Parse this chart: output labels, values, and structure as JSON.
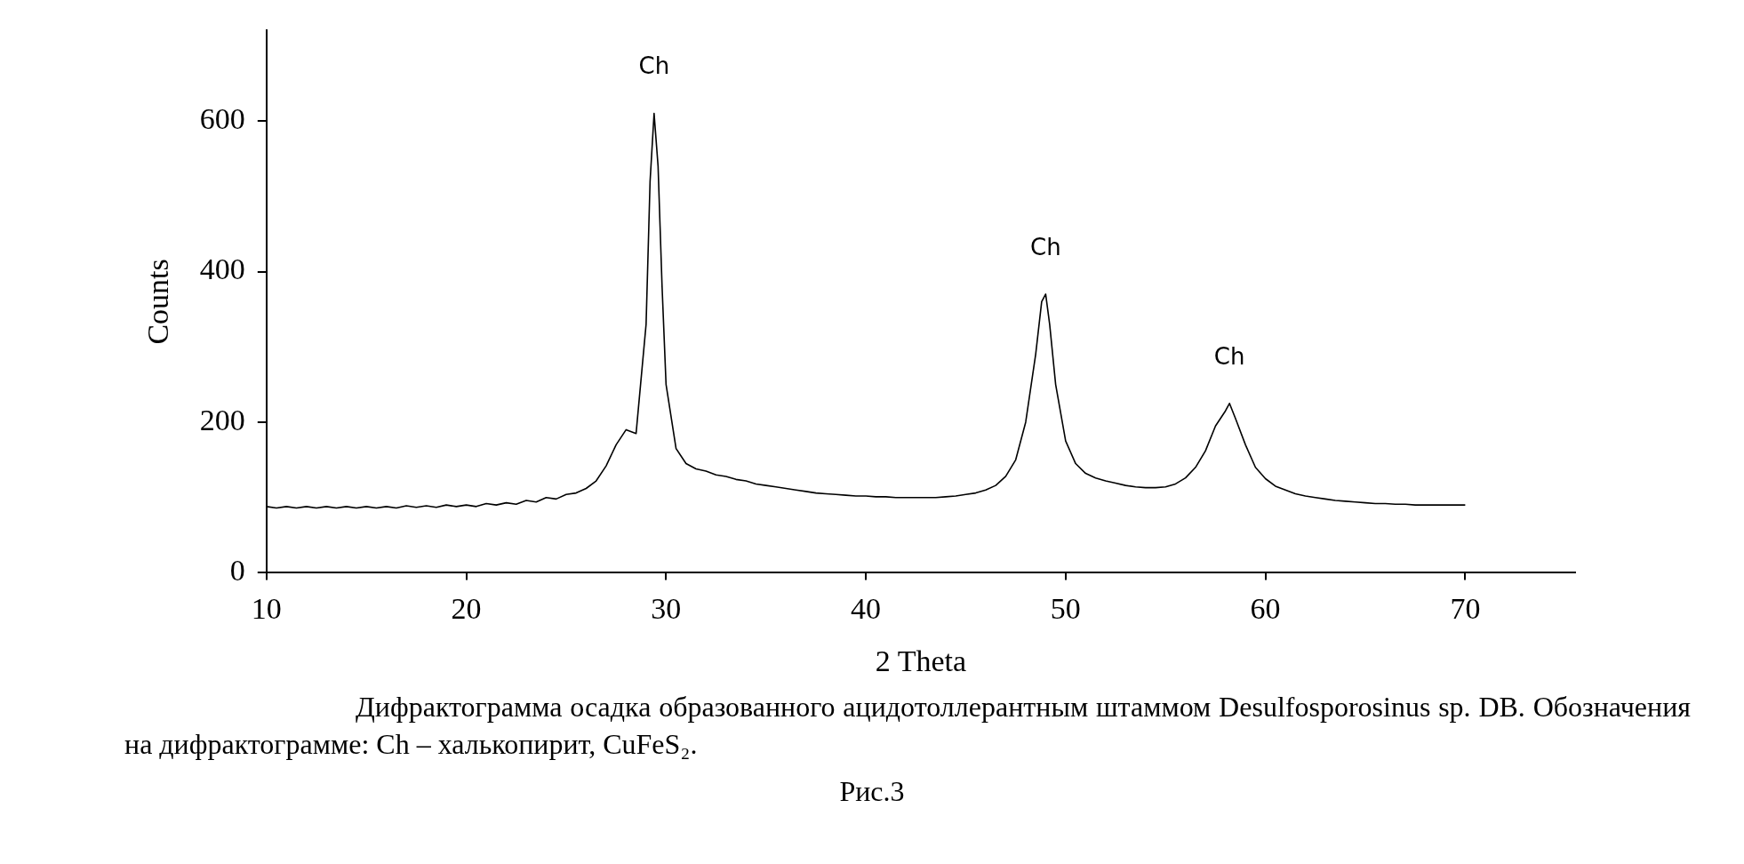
{
  "chart_data": {
    "type": "line",
    "xlabel": "2 Theta",
    "ylabel": "Counts",
    "xlim": [
      10,
      75.5
    ],
    "xticks": [
      10,
      20,
      30,
      40,
      50,
      60,
      70
    ],
    "ylim": [
      0,
      720
    ],
    "yticks": [
      0,
      200,
      400,
      600
    ],
    "grid": false,
    "legend": false,
    "marker": "none",
    "line_style": "solid",
    "series": [
      {
        "color": "#000000",
        "x": [
          10,
          10.5,
          11,
          11.5,
          12,
          12.5,
          13,
          13.5,
          14,
          14.5,
          15,
          15.5,
          16,
          16.5,
          17,
          17.5,
          18,
          18.5,
          19,
          19.5,
          20,
          20.5,
          21,
          21.5,
          22,
          22.5,
          23,
          23.5,
          24,
          24.5,
          25,
          25.5,
          26,
          26.5,
          27,
          27.5,
          28,
          28.5,
          29,
          29.2,
          29.4,
          29.6,
          29.8,
          30,
          30.5,
          31,
          31.5,
          32,
          32.5,
          33,
          33.5,
          34,
          34.5,
          35,
          35.5,
          36,
          36.5,
          37,
          37.5,
          38,
          38.5,
          39,
          39.5,
          40,
          40.5,
          41,
          41.5,
          42,
          42.5,
          43,
          43.5,
          44,
          44.5,
          45,
          45.5,
          46,
          46.5,
          47,
          47.5,
          48,
          48.5,
          48.8,
          49,
          49.2,
          49.5,
          50,
          50.5,
          51,
          51.5,
          52,
          52.5,
          53,
          53.5,
          54,
          54.5,
          55,
          55.5,
          56,
          56.5,
          57,
          57.5,
          58,
          58.2,
          58.5,
          59,
          59.5,
          60,
          60.5,
          61,
          61.5,
          62,
          62.5,
          63,
          63.5,
          64,
          64.5,
          65,
          65.5,
          66,
          66.5,
          67,
          67.5,
          68,
          68.5,
          69,
          69.5,
          70
        ],
        "values": [
          88,
          86,
          88,
          86,
          88,
          86,
          88,
          86,
          88,
          86,
          88,
          86,
          88,
          86,
          89,
          87,
          89,
          87,
          90,
          88,
          90,
          88,
          92,
          90,
          93,
          91,
          96,
          94,
          100,
          98,
          104,
          106,
          112,
          122,
          142,
          170,
          190,
          185,
          330,
          520,
          610,
          540,
          380,
          250,
          165,
          145,
          138,
          135,
          130,
          128,
          124,
          122,
          118,
          116,
          114,
          112,
          110,
          108,
          106,
          105,
          104,
          103,
          102,
          102,
          101,
          101,
          100,
          100,
          100,
          100,
          100,
          101,
          102,
          104,
          106,
          110,
          116,
          128,
          150,
          200,
          290,
          360,
          370,
          330,
          250,
          175,
          145,
          132,
          126,
          122,
          119,
          116,
          114,
          113,
          113,
          114,
          118,
          126,
          140,
          162,
          195,
          215,
          225,
          205,
          170,
          140,
          125,
          115,
          110,
          105,
          102,
          100,
          98,
          96,
          95,
          94,
          93,
          92,
          92,
          91,
          91,
          90,
          90,
          90,
          90,
          90,
          90
        ]
      }
    ],
    "annotations": [
      {
        "text": "Ch",
        "x": 29.4,
        "y": 610
      },
      {
        "text": "Ch",
        "x": 49,
        "y": 370
      },
      {
        "text": "Ch",
        "x": 58.2,
        "y": 225
      },
      "Дифрактограмма осадка образованного ацидотоллерантным штаммом Desulfosporosinus sp. DB. Обозначения на дифрактограмме: Ch – халькопирит, CuFeS₂.",
      "Рис.3"
    ]
  }
}
